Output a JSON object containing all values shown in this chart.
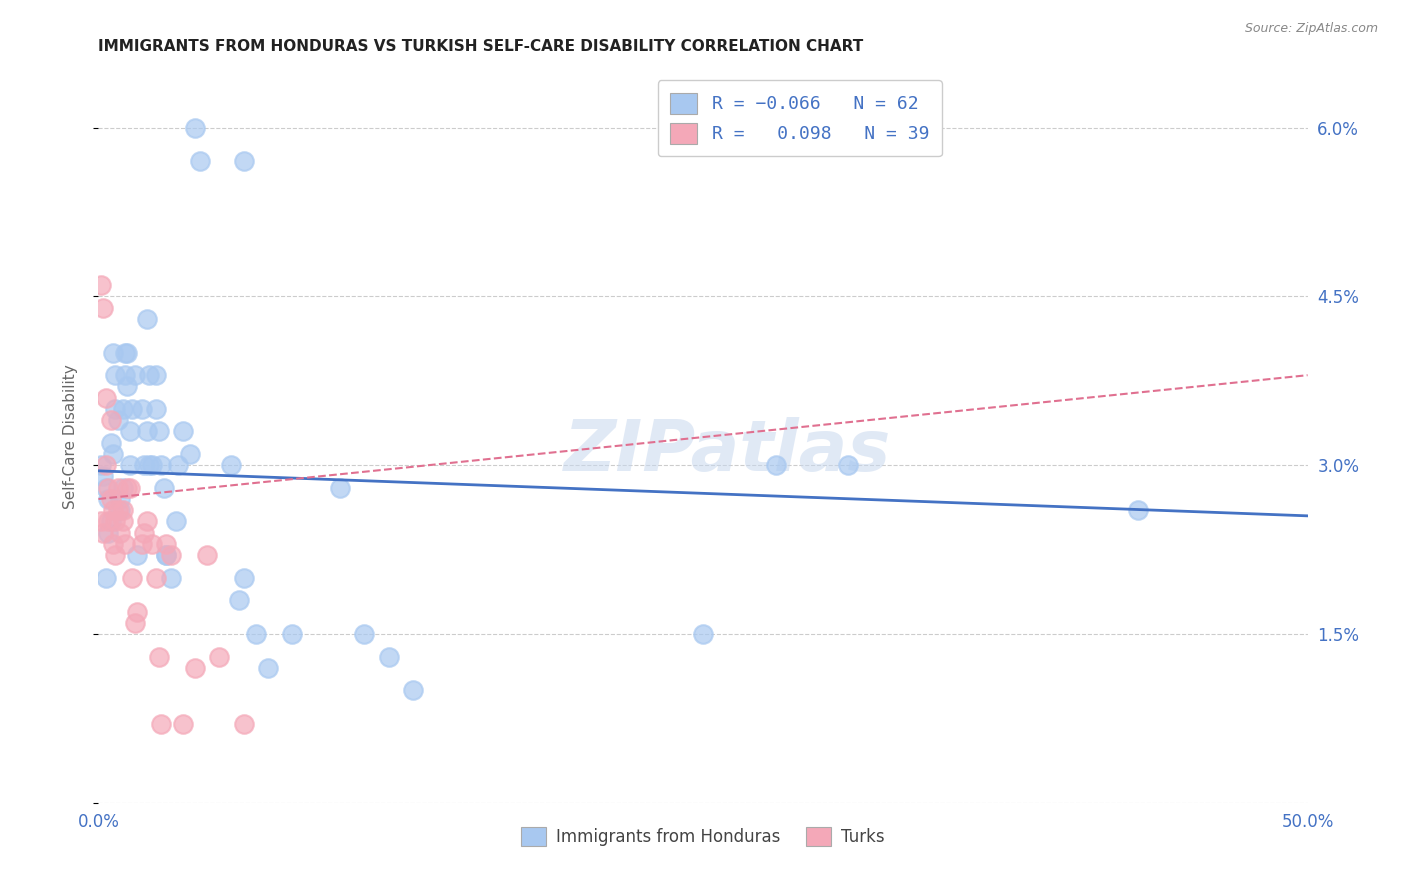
{
  "title": "IMMIGRANTS FROM HONDURAS VS TURKISH SELF-CARE DISABILITY CORRELATION CHART",
  "source": "Source: ZipAtlas.com",
  "ylabel": "Self-Care Disability",
  "x_min": 0.0,
  "x_max": 0.5,
  "y_min": 0.0,
  "y_max": 0.065,
  "x_ticks": [
    0.0,
    0.1,
    0.2,
    0.3,
    0.4,
    0.5
  ],
  "y_ticks": [
    0.0,
    0.015,
    0.03,
    0.045,
    0.06
  ],
  "color_blue": "#A8C8F0",
  "color_pink": "#F4A8B8",
  "color_line_blue": "#4472C4",
  "color_line_pink": "#E07090",
  "color_text_blue": "#4472C4",
  "color_grid": "#CCCCCC",
  "watermark": "ZIPatlas",
  "blue_line_y0": 0.0295,
  "blue_line_y1": 0.0255,
  "pink_line_y0": 0.027,
  "pink_line_y1": 0.038,
  "scatter_blue_x": [
    0.001,
    0.002,
    0.003,
    0.004,
    0.004,
    0.005,
    0.005,
    0.006,
    0.007,
    0.007,
    0.008,
    0.009,
    0.01,
    0.01,
    0.011,
    0.011,
    0.012,
    0.013,
    0.013,
    0.014,
    0.015,
    0.016,
    0.018,
    0.019,
    0.02,
    0.02,
    0.021,
    0.022,
    0.024,
    0.025,
    0.026,
    0.027,
    0.028,
    0.03,
    0.032,
    0.035,
    0.038,
    0.04,
    0.042,
    0.055,
    0.058,
    0.06,
    0.065,
    0.07,
    0.08,
    0.1,
    0.11,
    0.12,
    0.13,
    0.25,
    0.28,
    0.31,
    0.43,
    0.003,
    0.006,
    0.009,
    0.012,
    0.021,
    0.024,
    0.028,
    0.033,
    0.06
  ],
  "scatter_blue_y": [
    0.03,
    0.029,
    0.028,
    0.027,
    0.024,
    0.032,
    0.025,
    0.031,
    0.038,
    0.035,
    0.034,
    0.027,
    0.035,
    0.028,
    0.04,
    0.038,
    0.04,
    0.033,
    0.03,
    0.035,
    0.038,
    0.022,
    0.035,
    0.03,
    0.043,
    0.033,
    0.038,
    0.03,
    0.035,
    0.033,
    0.03,
    0.028,
    0.022,
    0.02,
    0.025,
    0.033,
    0.031,
    0.06,
    0.057,
    0.03,
    0.018,
    0.02,
    0.015,
    0.012,
    0.015,
    0.028,
    0.015,
    0.013,
    0.01,
    0.015,
    0.03,
    0.03,
    0.026,
    0.02,
    0.04,
    0.026,
    0.037,
    0.03,
    0.038,
    0.022,
    0.03,
    0.057
  ],
  "scatter_pink_x": [
    0.001,
    0.001,
    0.002,
    0.002,
    0.003,
    0.003,
    0.004,
    0.004,
    0.005,
    0.005,
    0.006,
    0.006,
    0.007,
    0.007,
    0.008,
    0.008,
    0.009,
    0.01,
    0.01,
    0.011,
    0.012,
    0.013,
    0.014,
    0.015,
    0.016,
    0.018,
    0.019,
    0.02,
    0.022,
    0.024,
    0.025,
    0.026,
    0.028,
    0.03,
    0.035,
    0.04,
    0.045,
    0.05,
    0.06
  ],
  "scatter_pink_y": [
    0.025,
    0.046,
    0.024,
    0.044,
    0.03,
    0.036,
    0.028,
    0.025,
    0.034,
    0.027,
    0.026,
    0.023,
    0.025,
    0.022,
    0.028,
    0.026,
    0.024,
    0.025,
    0.026,
    0.023,
    0.028,
    0.028,
    0.02,
    0.016,
    0.017,
    0.023,
    0.024,
    0.025,
    0.023,
    0.02,
    0.013,
    0.007,
    0.023,
    0.022,
    0.007,
    0.012,
    0.022,
    0.013,
    0.007
  ]
}
